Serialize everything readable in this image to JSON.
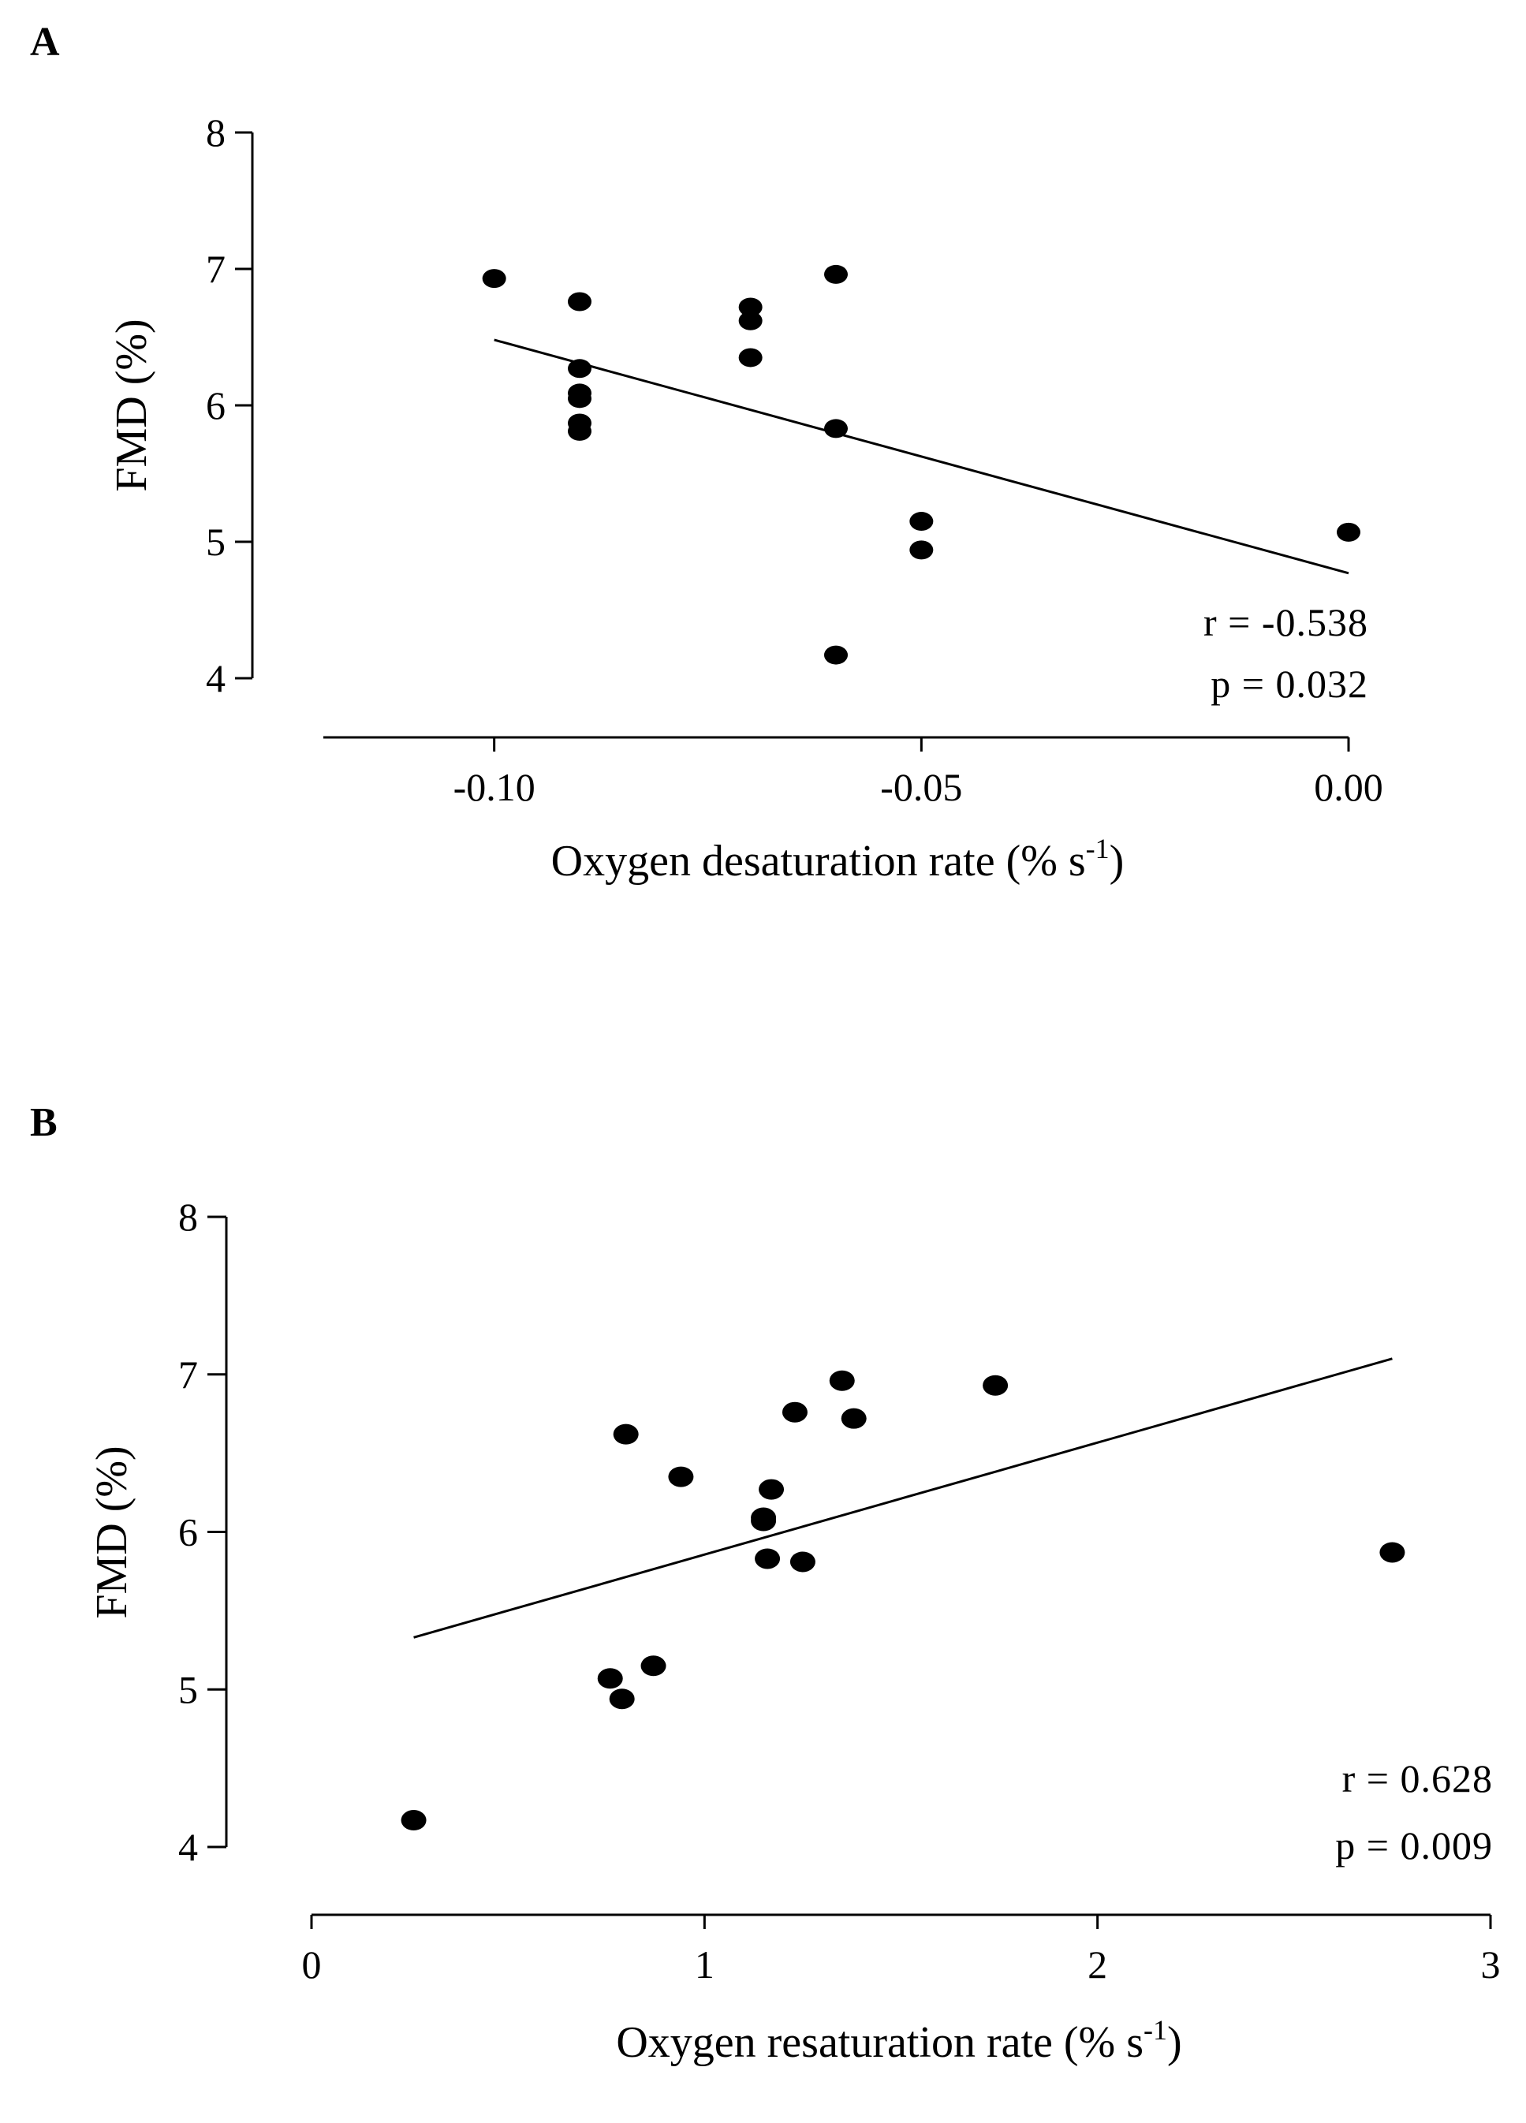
{
  "chart_data": [
    {
      "panel": "A",
      "type": "scatter",
      "xlabel": "Oxygen desaturation rate (% s",
      "xlabel_sup": "-1",
      "xlabel_end": ")",
      "ylabel": "FMD (%)",
      "xlim": [
        -0.12,
        0.0
      ],
      "ylim": [
        4,
        8
      ],
      "xticks": [
        -0.1,
        -0.05,
        0.0
      ],
      "xtick_labels": [
        "-0.10",
        "-0.05",
        "0.00"
      ],
      "yticks": [
        4,
        5,
        6,
        7,
        8
      ],
      "ytick_labels": [
        "4",
        "5",
        "6",
        "7",
        "8"
      ],
      "points": [
        {
          "x": -0.1,
          "y": 6.93
        },
        {
          "x": -0.09,
          "y": 6.76
        },
        {
          "x": -0.09,
          "y": 6.27
        },
        {
          "x": -0.09,
          "y": 6.09
        },
        {
          "x": -0.09,
          "y": 6.05
        },
        {
          "x": -0.09,
          "y": 5.87
        },
        {
          "x": -0.09,
          "y": 5.81
        },
        {
          "x": -0.07,
          "y": 6.72
        },
        {
          "x": -0.07,
          "y": 6.62
        },
        {
          "x": -0.07,
          "y": 6.35
        },
        {
          "x": -0.06,
          "y": 6.96
        },
        {
          "x": -0.06,
          "y": 5.83
        },
        {
          "x": -0.06,
          "y": 4.17
        },
        {
          "x": -0.05,
          "y": 5.15
        },
        {
          "x": -0.05,
          "y": 4.94
        },
        {
          "x": 0.0,
          "y": 5.07
        }
      ],
      "fit_line": {
        "x": [
          -0.1,
          0.0
        ],
        "y": [
          6.48,
          4.77
        ]
      },
      "r_text": "r = -0.538",
      "p_text": "p = 0.032"
    },
    {
      "panel": "B",
      "type": "scatter",
      "xlabel": "Oxygen resaturation rate (% s",
      "xlabel_sup": "-1",
      "xlabel_end": ")",
      "ylabel": "FMD (%)",
      "xlim": [
        0,
        3
      ],
      "ylim": [
        4,
        8
      ],
      "xticks": [
        0,
        1,
        2,
        3
      ],
      "xtick_labels": [
        "0",
        "1",
        "2",
        "3"
      ],
      "yticks": [
        4,
        5,
        6,
        7,
        8
      ],
      "ytick_labels": [
        "4",
        "5",
        "6",
        "7",
        "8"
      ],
      "points": [
        {
          "x": 0.26,
          "y": 4.17
        },
        {
          "x": 0.76,
          "y": 5.07
        },
        {
          "x": 0.79,
          "y": 4.94
        },
        {
          "x": 0.8,
          "y": 6.62
        },
        {
          "x": 0.87,
          "y": 5.15
        },
        {
          "x": 0.94,
          "y": 6.35
        },
        {
          "x": 1.15,
          "y": 6.09
        },
        {
          "x": 1.15,
          "y": 6.07
        },
        {
          "x": 1.16,
          "y": 5.83
        },
        {
          "x": 1.17,
          "y": 6.27
        },
        {
          "x": 1.23,
          "y": 6.76
        },
        {
          "x": 1.25,
          "y": 5.81
        },
        {
          "x": 1.35,
          "y": 6.96
        },
        {
          "x": 1.38,
          "y": 6.72
        },
        {
          "x": 1.74,
          "y": 6.93
        },
        {
          "x": 2.75,
          "y": 5.87
        }
      ],
      "fit_line": {
        "x": [
          0.26,
          2.75
        ],
        "y": [
          5.33,
          7.1
        ]
      },
      "r_text": "r = 0.628",
      "p_text": "p = 0.009"
    }
  ]
}
